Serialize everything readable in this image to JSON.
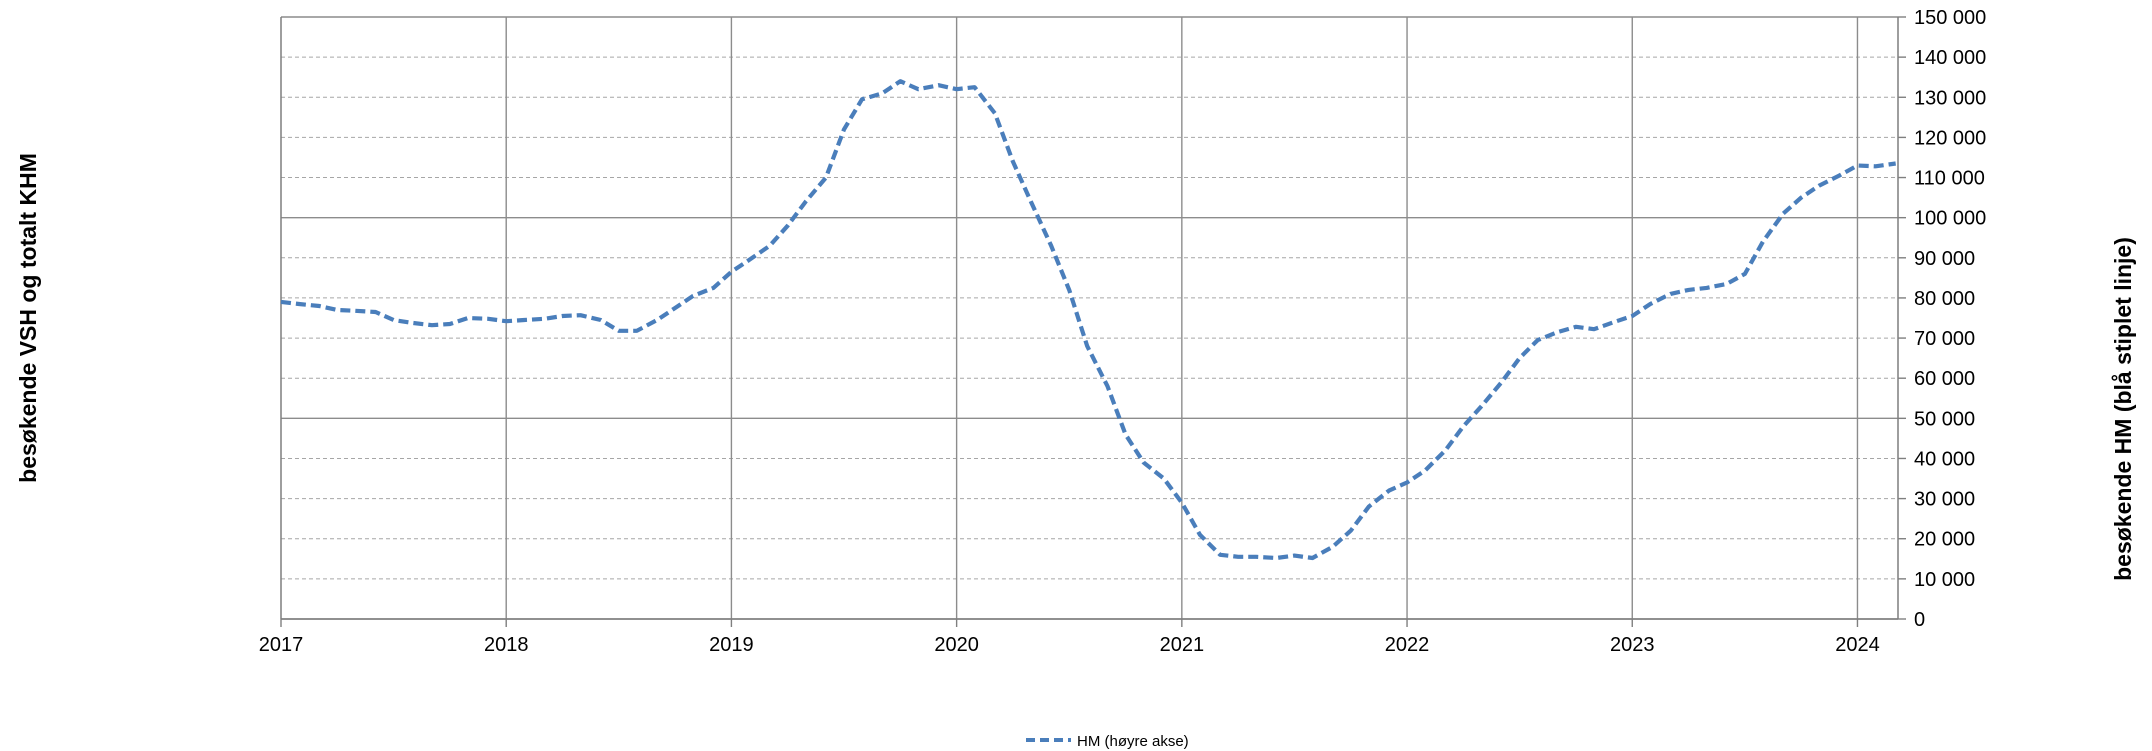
{
  "chart_data": {
    "type": "line",
    "title": "",
    "ylabel_left": "besøkende VSH og totalt KHM",
    "ylabel_right": "besøkende HM (blå stiplet linje)",
    "xlim": [
      2017.0,
      2024.18
    ],
    "ylim_right": [
      0,
      150000
    ],
    "x_ticks": [
      2017,
      2018,
      2019,
      2020,
      2021,
      2022,
      2023,
      2024
    ],
    "y_ticks": [
      0,
      10000,
      20000,
      30000,
      40000,
      50000,
      60000,
      70000,
      80000,
      90000,
      100000,
      110000,
      120000,
      130000,
      140000,
      150000
    ],
    "y_tick_labels": [
      "0",
      "10 000",
      "20 000",
      "30 000",
      "40 000",
      "50 000",
      "60 000",
      "70 000",
      "80 000",
      "90 000",
      "100 000",
      "110 000",
      "120 000",
      "130 000",
      "140 000",
      "150 000"
    ],
    "grid": {
      "major_solid_y": [
        0,
        50000,
        100000,
        150000
      ],
      "minor_dashed": true,
      "vertical_at_years": true
    },
    "legend_position": "bottom-center",
    "series": [
      {
        "name": "HM (høyre akse)",
        "axis": "right",
        "color": "#4a7ebb",
        "style": "dashed",
        "points": [
          [
            2017.0,
            79000
          ],
          [
            2017.08,
            78500
          ],
          [
            2017.17,
            78000
          ],
          [
            2017.25,
            77000
          ],
          [
            2017.33,
            76800
          ],
          [
            2017.42,
            76500
          ],
          [
            2017.5,
            74500
          ],
          [
            2017.58,
            73800
          ],
          [
            2017.67,
            73200
          ],
          [
            2017.75,
            73500
          ],
          [
            2017.83,
            75000
          ],
          [
            2017.92,
            74800
          ],
          [
            2018.0,
            74200
          ],
          [
            2018.08,
            74500
          ],
          [
            2018.17,
            74800
          ],
          [
            2018.25,
            75500
          ],
          [
            2018.33,
            75700
          ],
          [
            2018.42,
            74500
          ],
          [
            2018.5,
            71800
          ],
          [
            2018.58,
            71800
          ],
          [
            2018.67,
            74500
          ],
          [
            2018.75,
            77500
          ],
          [
            2018.83,
            80500
          ],
          [
            2018.92,
            82500
          ],
          [
            2019.0,
            86500
          ],
          [
            2019.08,
            89500
          ],
          [
            2019.17,
            93000
          ],
          [
            2019.25,
            98000
          ],
          [
            2019.33,
            104000
          ],
          [
            2019.42,
            110000
          ],
          [
            2019.5,
            122000
          ],
          [
            2019.58,
            129500
          ],
          [
            2019.67,
            131000
          ],
          [
            2019.75,
            134000
          ],
          [
            2019.83,
            132000
          ],
          [
            2019.92,
            133000
          ],
          [
            2020.0,
            132000
          ],
          [
            2020.08,
            132500
          ],
          [
            2020.17,
            126000
          ],
          [
            2020.25,
            114000
          ],
          [
            2020.33,
            104000
          ],
          [
            2020.42,
            93000
          ],
          [
            2020.5,
            82000
          ],
          [
            2020.58,
            68000
          ],
          [
            2020.67,
            58000
          ],
          [
            2020.75,
            46000
          ],
          [
            2020.83,
            39000
          ],
          [
            2020.92,
            35000
          ],
          [
            2021.0,
            29000
          ],
          [
            2021.08,
            21000
          ],
          [
            2021.17,
            16000
          ],
          [
            2021.25,
            15500
          ],
          [
            2021.33,
            15500
          ],
          [
            2021.42,
            15200
          ],
          [
            2021.5,
            15800
          ],
          [
            2021.58,
            15200
          ],
          [
            2021.67,
            18000
          ],
          [
            2021.75,
            22000
          ],
          [
            2021.83,
            28000
          ],
          [
            2021.92,
            32000
          ],
          [
            2022.0,
            34000
          ],
          [
            2022.08,
            37000
          ],
          [
            2022.17,
            42000
          ],
          [
            2022.25,
            48000
          ],
          [
            2022.33,
            53000
          ],
          [
            2022.42,
            59000
          ],
          [
            2022.5,
            65000
          ],
          [
            2022.58,
            69500
          ],
          [
            2022.67,
            71500
          ],
          [
            2022.75,
            72800
          ],
          [
            2022.83,
            72200
          ],
          [
            2022.92,
            74000
          ],
          [
            2023.0,
            75500
          ],
          [
            2023.08,
            78500
          ],
          [
            2023.17,
            81000
          ],
          [
            2023.25,
            82000
          ],
          [
            2023.33,
            82500
          ],
          [
            2023.42,
            83500
          ],
          [
            2023.5,
            86000
          ],
          [
            2023.58,
            94000
          ],
          [
            2023.67,
            101000
          ],
          [
            2023.75,
            105000
          ],
          [
            2023.83,
            108000
          ],
          [
            2023.92,
            110500
          ],
          [
            2024.0,
            113000
          ],
          [
            2024.08,
            112800
          ],
          [
            2024.17,
            113500
          ]
        ]
      }
    ]
  }
}
